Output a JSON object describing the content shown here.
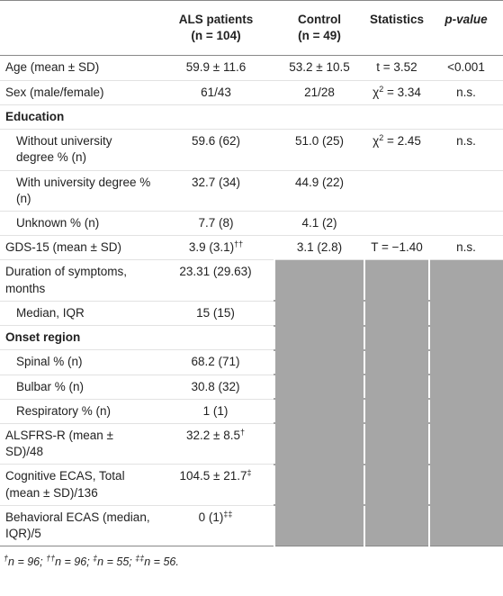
{
  "table": {
    "header": [
      null,
      [
        {
          "text": "ALS patients"
        },
        {
          "text": "(n = 104)",
          "br": true
        }
      ],
      [
        {
          "text": "Control"
        },
        {
          "text": "(n = 49)",
          "br": true
        }
      ],
      [
        {
          "text": "Statistics"
        }
      ],
      [
        {
          "text": "p-value"
        }
      ]
    ],
    "rows": [
      {
        "cells": [
          "Age (mean ± SD)",
          "59.9 ± 11.6",
          "53.2 ± 10.5",
          "t = 3.52",
          "<0.001"
        ]
      },
      {
        "cells": [
          "Sex (male/female)",
          "61/43",
          "21/28",
          [
            {
              "text": "χ"
            },
            {
              "sup": "2"
            },
            {
              "text": " = 3.34"
            }
          ],
          "n.s."
        ]
      },
      {
        "section": "Education"
      },
      {
        "indent": true,
        "cells": [
          "Without university degree % (n)",
          "59.6 (62)",
          "51.0 (25)",
          [
            {
              "text": "χ"
            },
            {
              "sup": "2"
            },
            {
              "text": " = 2.45"
            }
          ],
          "n.s."
        ]
      },
      {
        "indent": true,
        "cells": [
          "With university degree % (n)",
          "32.7 (34)",
          "44.9 (22)"
        ]
      },
      {
        "indent": true,
        "cells": [
          "Unknown % (n)",
          "7.7 (8)",
          "4.1 (2)"
        ]
      },
      {
        "cells": [
          "GDS-15 (mean ± SD)",
          [
            {
              "text": "3.9 (3.1)"
            },
            {
              "sup": "††"
            }
          ],
          "3.1 (2.8)",
          "T = −1.40",
          "n.s."
        ]
      },
      {
        "shaded": true,
        "cells": [
          "Duration of symptoms, months",
          "23.31 (29.63)"
        ]
      },
      {
        "shaded": true,
        "indent": true,
        "cells": [
          "Median, IQR",
          "15 (15)"
        ]
      },
      {
        "shaded": true,
        "section": "Onset region"
      },
      {
        "shaded": true,
        "indent": true,
        "cells": [
          "Spinal % (n)",
          "68.2 (71)"
        ]
      },
      {
        "shaded": true,
        "indent": true,
        "cells": [
          "Bulbar % (n)",
          "30.8 (32)"
        ]
      },
      {
        "shaded": true,
        "indent": true,
        "cells": [
          "Respiratory % (n)",
          "1 (1)"
        ]
      },
      {
        "shaded": true,
        "cells": [
          "ALSFRS-R (mean ± SD)/48",
          [
            {
              "text": "32.2 ± 8.5"
            },
            {
              "sup": "†"
            }
          ]
        ]
      },
      {
        "shaded": true,
        "cells": [
          "Cognitive ECAS, Total (mean ± SD)/136",
          [
            {
              "text": "104.5 ± 21.7"
            },
            {
              "sup": "‡"
            }
          ]
        ]
      },
      {
        "shaded": true,
        "cells": [
          "Behavioral ECAS (median, IQR)/5",
          [
            {
              "text": "0 (1)"
            },
            {
              "sup": "‡‡"
            }
          ]
        ]
      }
    ],
    "footnote": [
      {
        "sup": "†"
      },
      {
        "text": "n = 96; "
      },
      {
        "sup": "††"
      },
      {
        "text": "n = 96; "
      },
      {
        "sup": "‡"
      },
      {
        "text": "n = 55; "
      },
      {
        "sup": "‡‡"
      },
      {
        "text": "n = 56."
      }
    ]
  }
}
